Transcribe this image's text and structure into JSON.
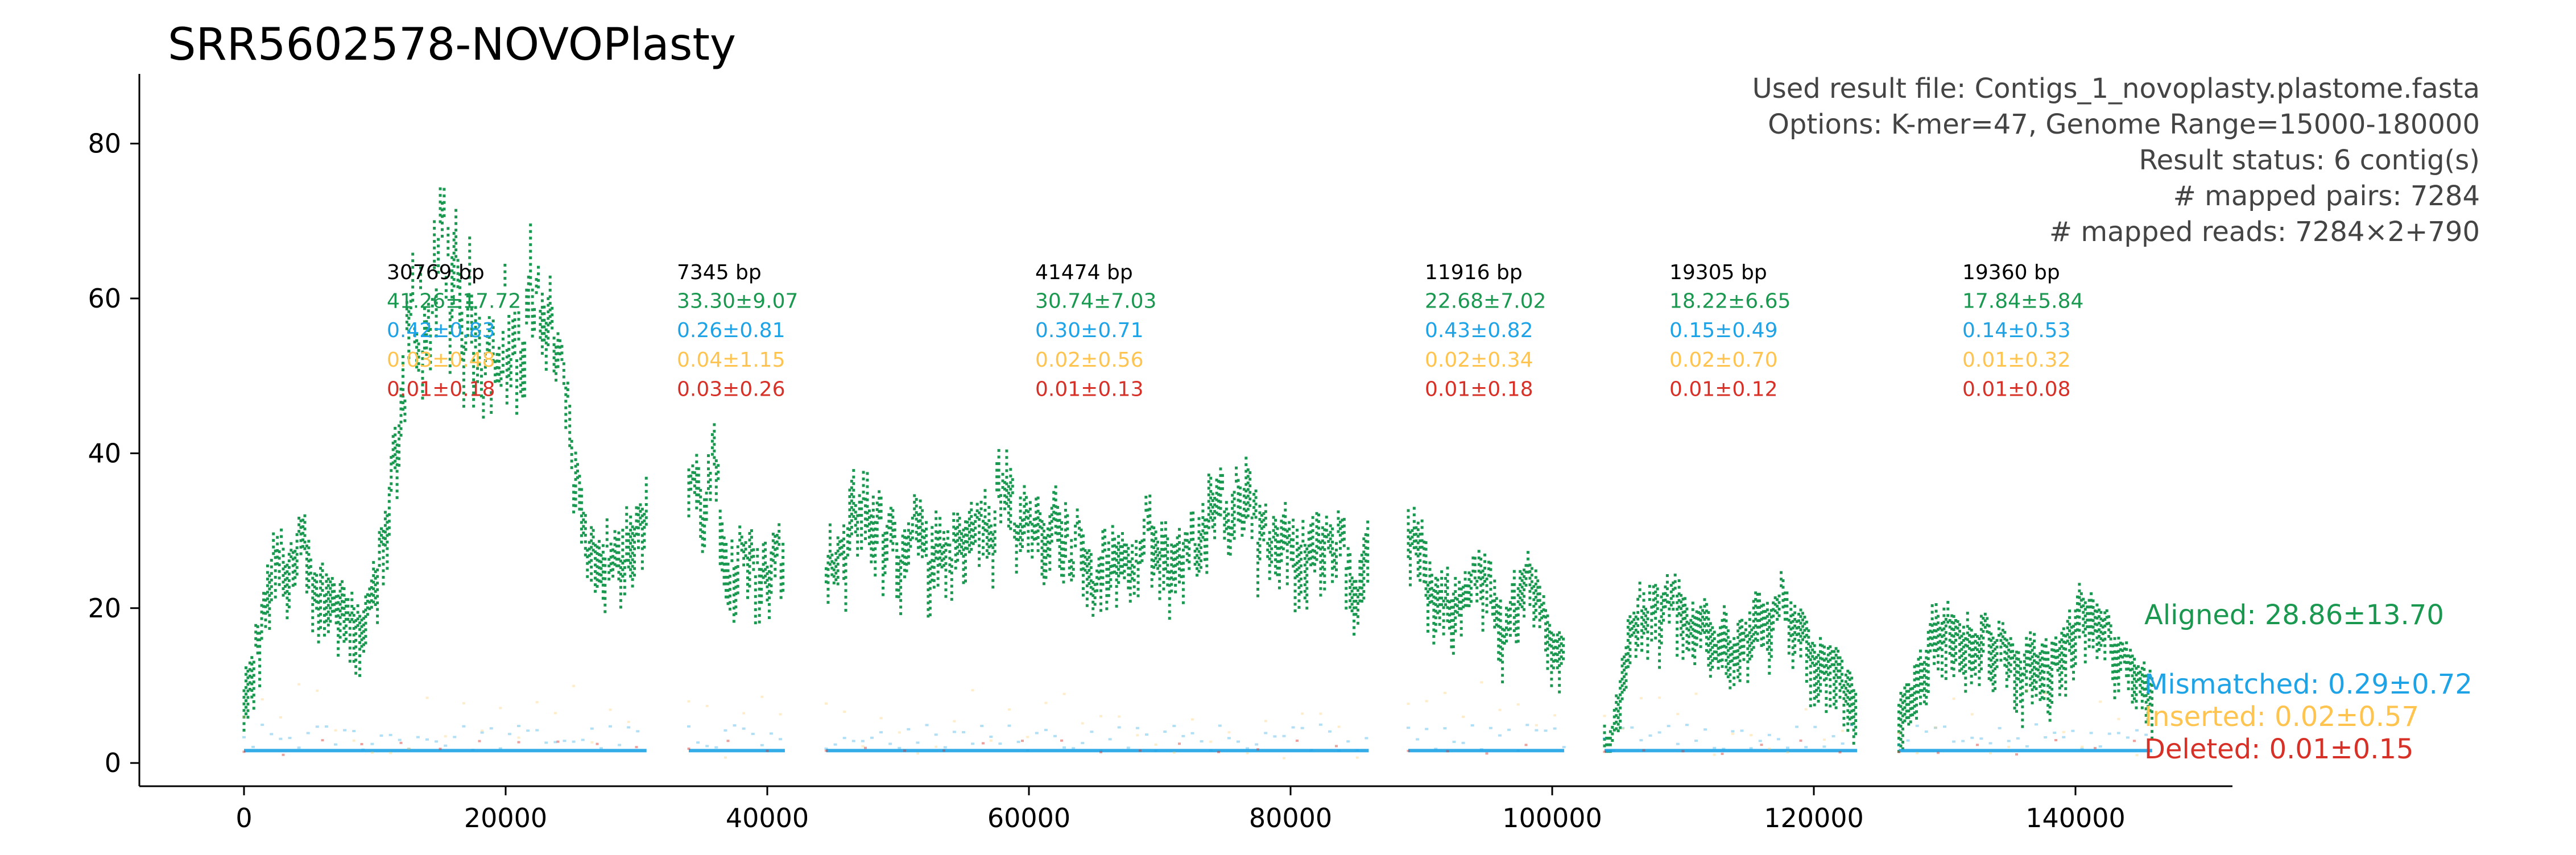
{
  "chart_data": {
    "type": "scatter",
    "title": "SRR5602578-NOVOPlasty",
    "xlabel": "",
    "ylabel": "",
    "xlim": [
      -8000,
      152000
    ],
    "ylim": [
      -3,
      89
    ],
    "x_ticks": [
      0,
      20000,
      40000,
      60000,
      80000,
      100000,
      120000,
      140000
    ],
    "y_ticks": [
      0,
      20,
      40,
      60,
      80
    ],
    "info_lines": [
      "Used result file: Contigs_1_novoplasty.plastome.fasta",
      "Options: K-mer=47, Genome Range=15000-180000",
      "Result status: 6 contig(s)",
      "# mapped pairs: 7284",
      "# mapped reads: 7284×2+790"
    ],
    "colors": {
      "aligned": "#1a9850",
      "mismatched": "#1ea3e6",
      "inserted": "#fec44f",
      "deleted": "#d73027",
      "text": "#000000",
      "info": "#444444"
    },
    "contigs": [
      {
        "start": 0,
        "end": 30769,
        "length_label": "30769 bp",
        "aligned": "41.26±17.72",
        "mismatched": "0.42±0.83",
        "inserted": "0.03±0.48",
        "deleted": "0.01±0.18",
        "profile": [
          [
            0,
            10
          ],
          [
            1500,
            25
          ],
          [
            3000,
            30
          ],
          [
            5000,
            24
          ],
          [
            7000,
            25
          ],
          [
            9000,
            20
          ],
          [
            10500,
            30
          ],
          [
            11500,
            42
          ],
          [
            12500,
            60
          ],
          [
            14500,
            65
          ],
          [
            16500,
            58
          ],
          [
            18500,
            60
          ],
          [
            20000,
            55
          ],
          [
            21500,
            58
          ],
          [
            22500,
            68
          ],
          [
            24000,
            50
          ],
          [
            25500,
            32
          ],
          [
            27000,
            24
          ],
          [
            28500,
            30
          ],
          [
            30769,
            33
          ]
        ]
      },
      {
        "start": 34000,
        "end": 41345,
        "length_label": "7345 bp",
        "aligned": "33.30±9.07",
        "mismatched": "0.26±0.81",
        "inserted": "0.04±1.15",
        "deleted": "0.03±0.26",
        "profile": [
          [
            34000,
            35
          ],
          [
            35500,
            45
          ],
          [
            37000,
            30
          ],
          [
            38500,
            32
          ],
          [
            40000,
            25
          ],
          [
            41345,
            30
          ]
        ]
      },
      {
        "start": 44500,
        "end": 85974,
        "length_label": "41474 bp",
        "aligned": "30.74±7.03",
        "mismatched": "0.30±0.71",
        "inserted": "0.02±0.56",
        "deleted": "0.01±0.13",
        "profile": [
          [
            44500,
            28
          ],
          [
            47000,
            34
          ],
          [
            50000,
            30
          ],
          [
            53000,
            31
          ],
          [
            56000,
            30
          ],
          [
            58000,
            35
          ],
          [
            61000,
            36
          ],
          [
            63000,
            30
          ],
          [
            66000,
            28
          ],
          [
            69000,
            29
          ],
          [
            72000,
            26
          ],
          [
            74000,
            34
          ],
          [
            76500,
            38
          ],
          [
            79000,
            32
          ],
          [
            82000,
            30
          ],
          [
            85974,
            26
          ]
        ]
      },
      {
        "start": 89000,
        "end": 100916,
        "length_label": "11916 bp",
        "aligned": "22.68±7.02",
        "mismatched": "0.43±0.82",
        "inserted": "0.02±0.34",
        "deleted": "0.01±0.18",
        "profile": [
          [
            89000,
            30
          ],
          [
            91500,
            20
          ],
          [
            94000,
            25
          ],
          [
            96500,
            22
          ],
          [
            98500,
            24
          ],
          [
            100916,
            14
          ]
        ]
      },
      {
        "start": 104000,
        "end": 123305,
        "length_label": "19305 bp",
        "aligned": "18.22±6.65",
        "mismatched": "0.15±0.49",
        "inserted": "0.02±0.70",
        "deleted": "0.01±0.12",
        "profile": [
          [
            104000,
            5
          ],
          [
            105500,
            18
          ],
          [
            108000,
            24
          ],
          [
            110000,
            20
          ],
          [
            113000,
            18
          ],
          [
            116000,
            22
          ],
          [
            119000,
            16
          ],
          [
            121500,
            15
          ],
          [
            123305,
            5
          ]
        ]
      },
      {
        "start": 126500,
        "end": 145860,
        "length_label": "19360 bp",
        "aligned": "17.84±5.84",
        "mismatched": "0.14±0.53",
        "inserted": "0.01±0.32",
        "deleted": "0.01±0.08",
        "profile": [
          [
            126500,
            8
          ],
          [
            128500,
            20
          ],
          [
            131000,
            19
          ],
          [
            134000,
            16
          ],
          [
            137000,
            15
          ],
          [
            140000,
            20
          ],
          [
            143000,
            19
          ],
          [
            145860,
            8
          ]
        ]
      }
    ],
    "legend": {
      "aligned": "Aligned: 28.86±13.70",
      "mismatched": "Mismatched: 0.29±0.72",
      "inserted": "Inserted: 0.02±0.57",
      "deleted": "Deleted: 0.01±0.15"
    },
    "legend_placement": "right"
  }
}
